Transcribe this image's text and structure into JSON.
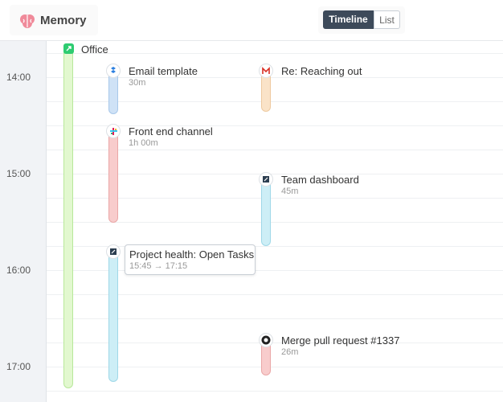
{
  "header": {
    "app_name": "Memory"
  },
  "view_toggle": {
    "options": [
      "Timeline",
      "List"
    ]
  },
  "time_labels": [
    "14:00",
    "15:00",
    "16:00",
    "17:00"
  ],
  "groups": [
    {
      "label": "Office"
    }
  ],
  "events": [
    {
      "title": "Email template",
      "detail": "30m"
    },
    {
      "title": "Front end channel",
      "detail": "1h 00m"
    },
    {
      "title": "Project health: Open Tasks",
      "detail": "15:45 → 17:15"
    },
    {
      "title": "Re: Reaching out",
      "detail": ""
    },
    {
      "title": "Team dashboard",
      "detail": "45m"
    },
    {
      "title": "Merge pull request #1337",
      "detail": "26m"
    }
  ]
}
